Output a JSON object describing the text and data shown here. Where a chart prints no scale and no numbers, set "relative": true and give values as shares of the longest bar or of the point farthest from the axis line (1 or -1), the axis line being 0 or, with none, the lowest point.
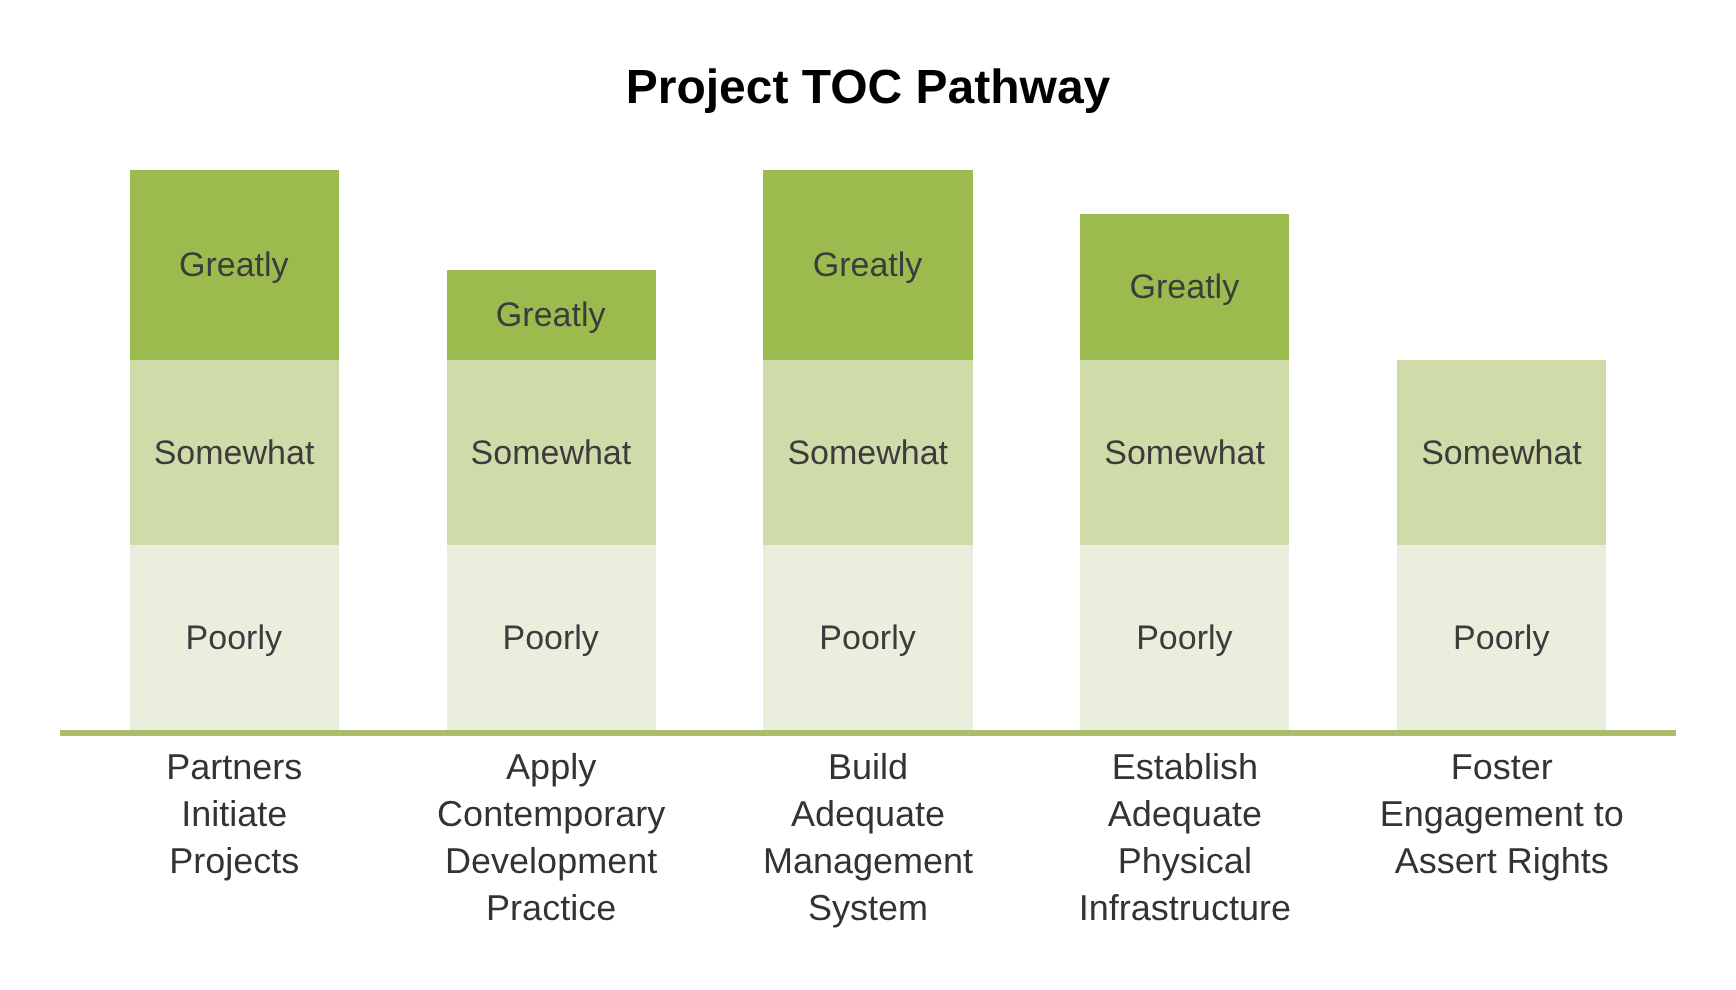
{
  "chart_data": {
    "type": "bar",
    "title": "Project TOC Pathway",
    "stacked": true,
    "relative": true,
    "legend": false,
    "categories": [
      "Partners Initiate Projects",
      "Apply Contemporary Development Practice",
      "Build Adequate Management System",
      "Establish Adequate Physical Infrastructure",
      "Foster Engagement to Assert Rights"
    ],
    "series": [
      {
        "name": "Poorly",
        "color": "#e9efdc",
        "values": [
          0.33,
          0.33,
          0.33,
          0.33,
          0.33
        ]
      },
      {
        "name": "Somewhat",
        "color": "#cfdba8",
        "values": [
          0.33,
          0.33,
          0.33,
          0.33,
          0.33
        ]
      },
      {
        "name": "Greatly",
        "color": "#9cbb4f",
        "values": [
          0.34,
          0.16,
          0.34,
          0.26,
          null
        ]
      }
    ]
  }
}
